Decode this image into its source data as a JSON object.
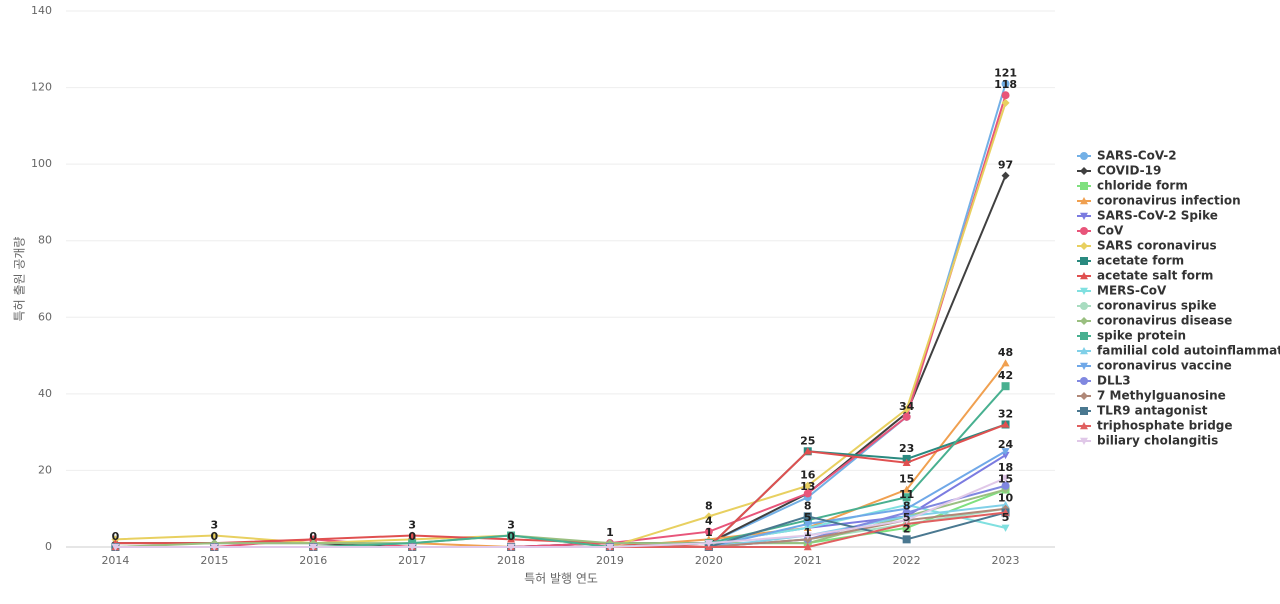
{
  "chart_data": {
    "type": "line",
    "x_label": "특허 발행 연도",
    "y_label": "특허 출원 공개량",
    "categories": [
      "2014",
      "2015",
      "2016",
      "2017",
      "2018",
      "2019",
      "2020",
      "2021",
      "2022",
      "2023"
    ],
    "ylim": [
      0,
      140
    ],
    "yticks": [
      0,
      20,
      40,
      60,
      80,
      100,
      120,
      140
    ],
    "grid": true,
    "legend": "right",
    "series": [
      {
        "name": "SARS-CoV-2",
        "color": "#73b0e6",
        "marker": "circle",
        "values": [
          0,
          0,
          0,
          0,
          0,
          1,
          1,
          13,
          34,
          121
        ]
      },
      {
        "name": "COVID-19",
        "color": "#404040",
        "marker": "diamond",
        "values": [
          1,
          1,
          1,
          0,
          0,
          1,
          1,
          14,
          35,
          97
        ]
      },
      {
        "name": "chloride form",
        "color": "#7fe07f",
        "marker": "square",
        "values": [
          0,
          0,
          0,
          0,
          0,
          0,
          1,
          1,
          5,
          15
        ]
      },
      {
        "name": "coronavirus infection",
        "color": "#f0a050",
        "marker": "triangle",
        "values": [
          0,
          0,
          0,
          1,
          0,
          0,
          2,
          5,
          15,
          48
        ]
      },
      {
        "name": "SARS-CoV-2 Spike",
        "color": "#7b7be0",
        "marker": "triangle-down",
        "values": [
          0,
          0,
          0,
          0,
          0,
          0,
          1,
          5,
          8,
          24
        ]
      },
      {
        "name": "CoV",
        "color": "#e8557a",
        "marker": "circle",
        "values": [
          0,
          0,
          2,
          0,
          0,
          1,
          4,
          14,
          34,
          118
        ]
      },
      {
        "name": "SARS coronavirus",
        "color": "#e8d060",
        "marker": "diamond",
        "values": [
          2,
          3,
          1,
          2,
          3,
          0,
          8,
          16,
          36,
          116
        ]
      },
      {
        "name": "acetate form",
        "color": "#2a8a80",
        "marker": "square",
        "values": [
          0,
          0,
          0,
          0,
          0,
          0,
          0,
          25,
          23,
          32
        ]
      },
      {
        "name": "acetate salt form",
        "color": "#e05050",
        "marker": "triangle",
        "values": [
          1,
          1,
          2,
          3,
          2,
          1,
          0,
          25,
          22,
          32
        ]
      },
      {
        "name": "MERS-CoV",
        "color": "#80e0e0",
        "marker": "triangle-down",
        "values": [
          0,
          0,
          0,
          0,
          0,
          0,
          1,
          5,
          11,
          5
        ]
      },
      {
        "name": "coronavirus spike",
        "color": "#a8dcc0",
        "marker": "circle",
        "values": [
          0,
          0,
          0,
          0,
          0,
          0,
          0,
          2,
          6,
          10
        ]
      },
      {
        "name": "coronavirus disease",
        "color": "#9abf80",
        "marker": "diamond",
        "values": [
          0,
          1,
          1,
          1,
          3,
          1,
          1,
          1,
          8,
          15
        ]
      },
      {
        "name": "spike protein",
        "color": "#48b090",
        "marker": "square",
        "values": [
          0,
          0,
          0,
          1,
          3,
          0,
          1,
          7,
          13,
          42
        ]
      },
      {
        "name": "familial cold autoinflammat...",
        "color": "#80d0e8",
        "marker": "triangle",
        "values": [
          0,
          0,
          0,
          0,
          0,
          0,
          0,
          3,
          8,
          11
        ]
      },
      {
        "name": "coronavirus vaccine",
        "color": "#70a8e8",
        "marker": "triangle-down",
        "values": [
          0,
          0,
          0,
          0,
          0,
          0,
          0,
          6,
          10,
          25
        ]
      },
      {
        "name": "DLL3",
        "color": "#8088e0",
        "marker": "circle",
        "values": [
          0,
          0,
          0,
          0,
          0,
          0,
          0,
          2,
          9,
          16
        ]
      },
      {
        "name": "7 Methylguanosine",
        "color": "#b08878",
        "marker": "diamond",
        "values": [
          0,
          0,
          0,
          0,
          0,
          0,
          0,
          2,
          7,
          10
        ]
      },
      {
        "name": "TLR9 antagonist",
        "color": "#4a7890",
        "marker": "square",
        "values": [
          0,
          0,
          0,
          0,
          0,
          0,
          0,
          8,
          2,
          9
        ]
      },
      {
        "name": "triphosphate bridge",
        "color": "#e06060",
        "marker": "triangle",
        "values": [
          0,
          0,
          0,
          0,
          0,
          0,
          0,
          0,
          6,
          9
        ]
      },
      {
        "name": "biliary cholangitis",
        "color": "#e0c8e8",
        "marker": "triangle-down",
        "values": [
          0,
          0,
          0,
          0,
          0,
          0,
          1,
          3,
          7,
          18
        ]
      }
    ]
  }
}
